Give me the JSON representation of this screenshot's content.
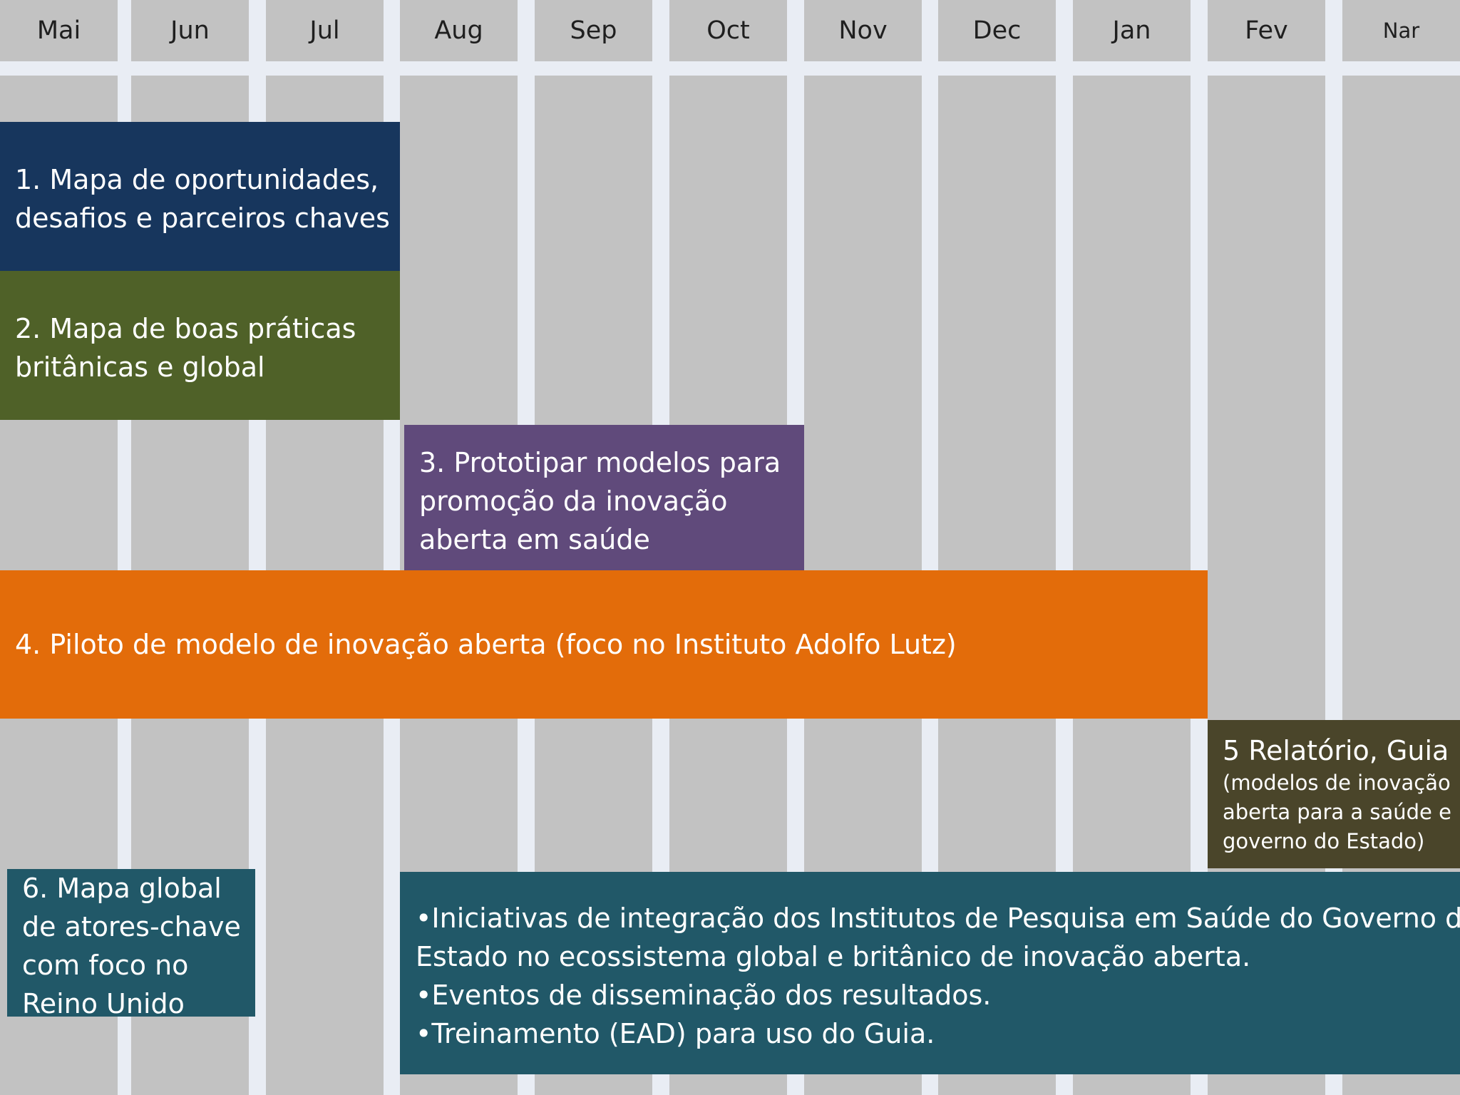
{
  "months": [
    "Mai",
    "Jun",
    "Jul",
    "Aug",
    "Sep",
    "Oct",
    "Nov",
    "Dec",
    "Jan",
    "Fev",
    "Nar"
  ],
  "tasks": {
    "t1": {
      "lines": [
        "1. Mapa de oportunidades,",
        "desafios e parceiros chaves"
      ],
      "color": "#17365d"
    },
    "t2": {
      "lines": [
        "2. Mapa de boas práticas",
        "britânicas e global"
      ],
      "color": "#4f6128"
    },
    "t3": {
      "lines": [
        "3. Prototipar modelos para",
        "promoção da inovação",
        "aberta em saúde"
      ],
      "color": "#604a7b"
    },
    "t4": {
      "lines": [
        "4. Piloto de modelo de inovação aberta (foco no Instituto Adolfo Lutz)"
      ],
      "color": "#e36c0a"
    },
    "t5": {
      "title": "5 Relatório, Guia",
      "sub_lines": [
        "(modelos de inovação",
        "aberta para a saúde e",
        "governo do Estado)"
      ],
      "color": "#4a452a"
    },
    "t6": {
      "lines": [
        "6. Mapa  global",
        "de atores-chave",
        "com foco no",
        "Reino Unido"
      ],
      "color": "#215868"
    },
    "t7": {
      "lines": [
        "•Iniciativas de integração dos Institutos de Pesquisa em Saúde do Governo do",
        "Estado no ecossistema global e britânico de inovação aberta.",
        "•Eventos de disseminação dos resultados.",
        "•Treinamento (EAD) para uso do Guia."
      ],
      "color": "#215868"
    }
  }
}
